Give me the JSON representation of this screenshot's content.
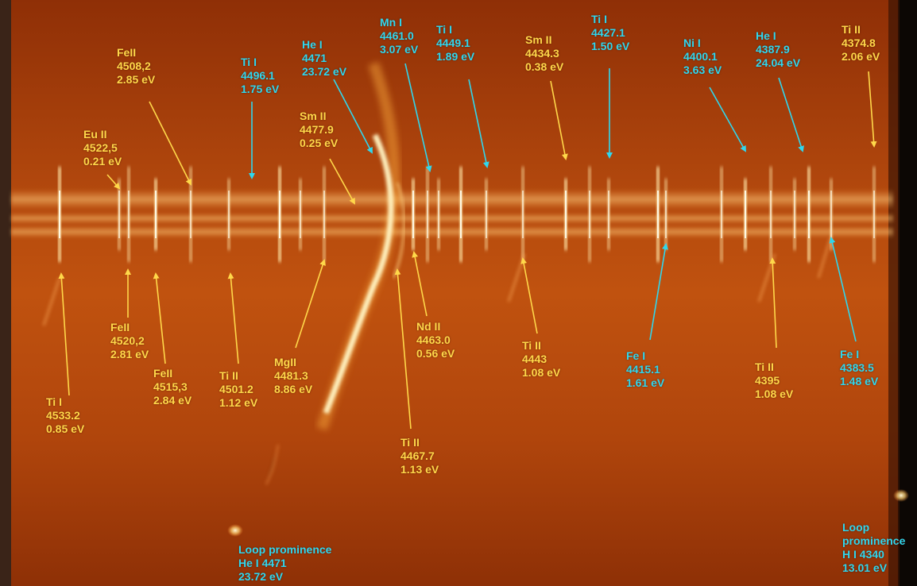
{
  "colors": {
    "yellow_label": "#ffd84a",
    "cyan_label": "#2fd7ee",
    "background_mid": "#b8460c",
    "background_edge": "#8a2a05",
    "left_strip": "#2a1a14",
    "right_edge": "#0b0604"
  },
  "labels": [
    {
      "id": "feii-4508",
      "lines": [
        "FeII",
        "4508,2",
        "2.85 eV"
      ],
      "color": "yellow"
    },
    {
      "id": "eu-ii-4522",
      "lines": [
        "Eu II",
        "4522,5",
        "0.21 eV"
      ],
      "color": "yellow"
    },
    {
      "id": "ti-i-4496",
      "lines": [
        "Ti I",
        "4496.1",
        "1.75 eV"
      ],
      "color": "cyan"
    },
    {
      "id": "he-i-4471",
      "lines": [
        "He  I",
        "4471",
        "23.72 eV"
      ],
      "color": "cyan"
    },
    {
      "id": "sm-ii-4477",
      "lines": [
        "Sm II",
        "4477.9",
        "0.25 eV"
      ],
      "color": "yellow"
    },
    {
      "id": "mn-i-4461",
      "lines": [
        "Mn I",
        "4461.0",
        "3.07 eV"
      ],
      "color": "cyan"
    },
    {
      "id": "ti-i-4449",
      "lines": [
        "Ti I",
        "4449.1",
        "1.89 eV"
      ],
      "color": "cyan"
    },
    {
      "id": "sm-ii-4434",
      "lines": [
        "Sm II",
        "4434.3",
        "0.38 eV"
      ],
      "color": "yellow"
    },
    {
      "id": "ti-i-4427",
      "lines": [
        "Ti I",
        "4427.1",
        "1.50 eV"
      ],
      "color": "cyan"
    },
    {
      "id": "ni-i-4400",
      "lines": [
        "Ni I",
        "4400.1",
        "3.63 eV"
      ],
      "color": "cyan"
    },
    {
      "id": "he-i-4387",
      "lines": [
        "He I",
        "4387.9",
        "24.04 eV"
      ],
      "color": "cyan"
    },
    {
      "id": "ti-ii-4374",
      "lines": [
        "Ti II",
        "4374.8",
        "2.06 eV"
      ],
      "color": "yellow"
    },
    {
      "id": "ti-i-4533",
      "lines": [
        "Ti I",
        "4533.2",
        "0.85 eV"
      ],
      "color": "yellow"
    },
    {
      "id": "feii-4520",
      "lines": [
        "FeII",
        "4520,2",
        "2.81 eV"
      ],
      "color": "yellow"
    },
    {
      "id": "feii-4515",
      "lines": [
        "FeII",
        "4515,3",
        "2.84 eV"
      ],
      "color": "yellow"
    },
    {
      "id": "ti-ii-4501",
      "lines": [
        "Ti II",
        "4501.2",
        "1.12 eV"
      ],
      "color": "yellow"
    },
    {
      "id": "mgii-4481",
      "lines": [
        "MgII",
        "4481.3",
        "8.86 eV"
      ],
      "color": "yellow"
    },
    {
      "id": "nd-ii-4463",
      "lines": [
        "Nd II",
        "4463.0",
        "0.56 eV"
      ],
      "color": "yellow"
    },
    {
      "id": "ti-ii-4467",
      "lines": [
        "Ti II",
        "4467.7",
        "1.13 eV"
      ],
      "color": "yellow"
    },
    {
      "id": "ti-ii-4443",
      "lines": [
        "Ti II",
        "4443",
        "1.08 eV"
      ],
      "color": "yellow"
    },
    {
      "id": "fe-i-4415",
      "lines": [
        "Fe I",
        "4415.1",
        "1.61 eV"
      ],
      "color": "cyan"
    },
    {
      "id": "ti-ii-4395",
      "lines": [
        "Ti II",
        "4395",
        "1.08 eV"
      ],
      "color": "yellow"
    },
    {
      "id": "fe-i-4383",
      "lines": [
        "Fe I",
        "4383.5",
        "1.48 eV"
      ],
      "color": "cyan"
    },
    {
      "id": "loop-he-4471",
      "lines": [
        "Loop prominence",
        "He I 4471",
        "23.72 eV"
      ],
      "color": "cyan"
    },
    {
      "id": "loop-h-4340",
      "lines": [
        "Loop",
        "prominence",
        "H I 4340",
        "13.01 eV"
      ],
      "color": "cyan"
    }
  ]
}
